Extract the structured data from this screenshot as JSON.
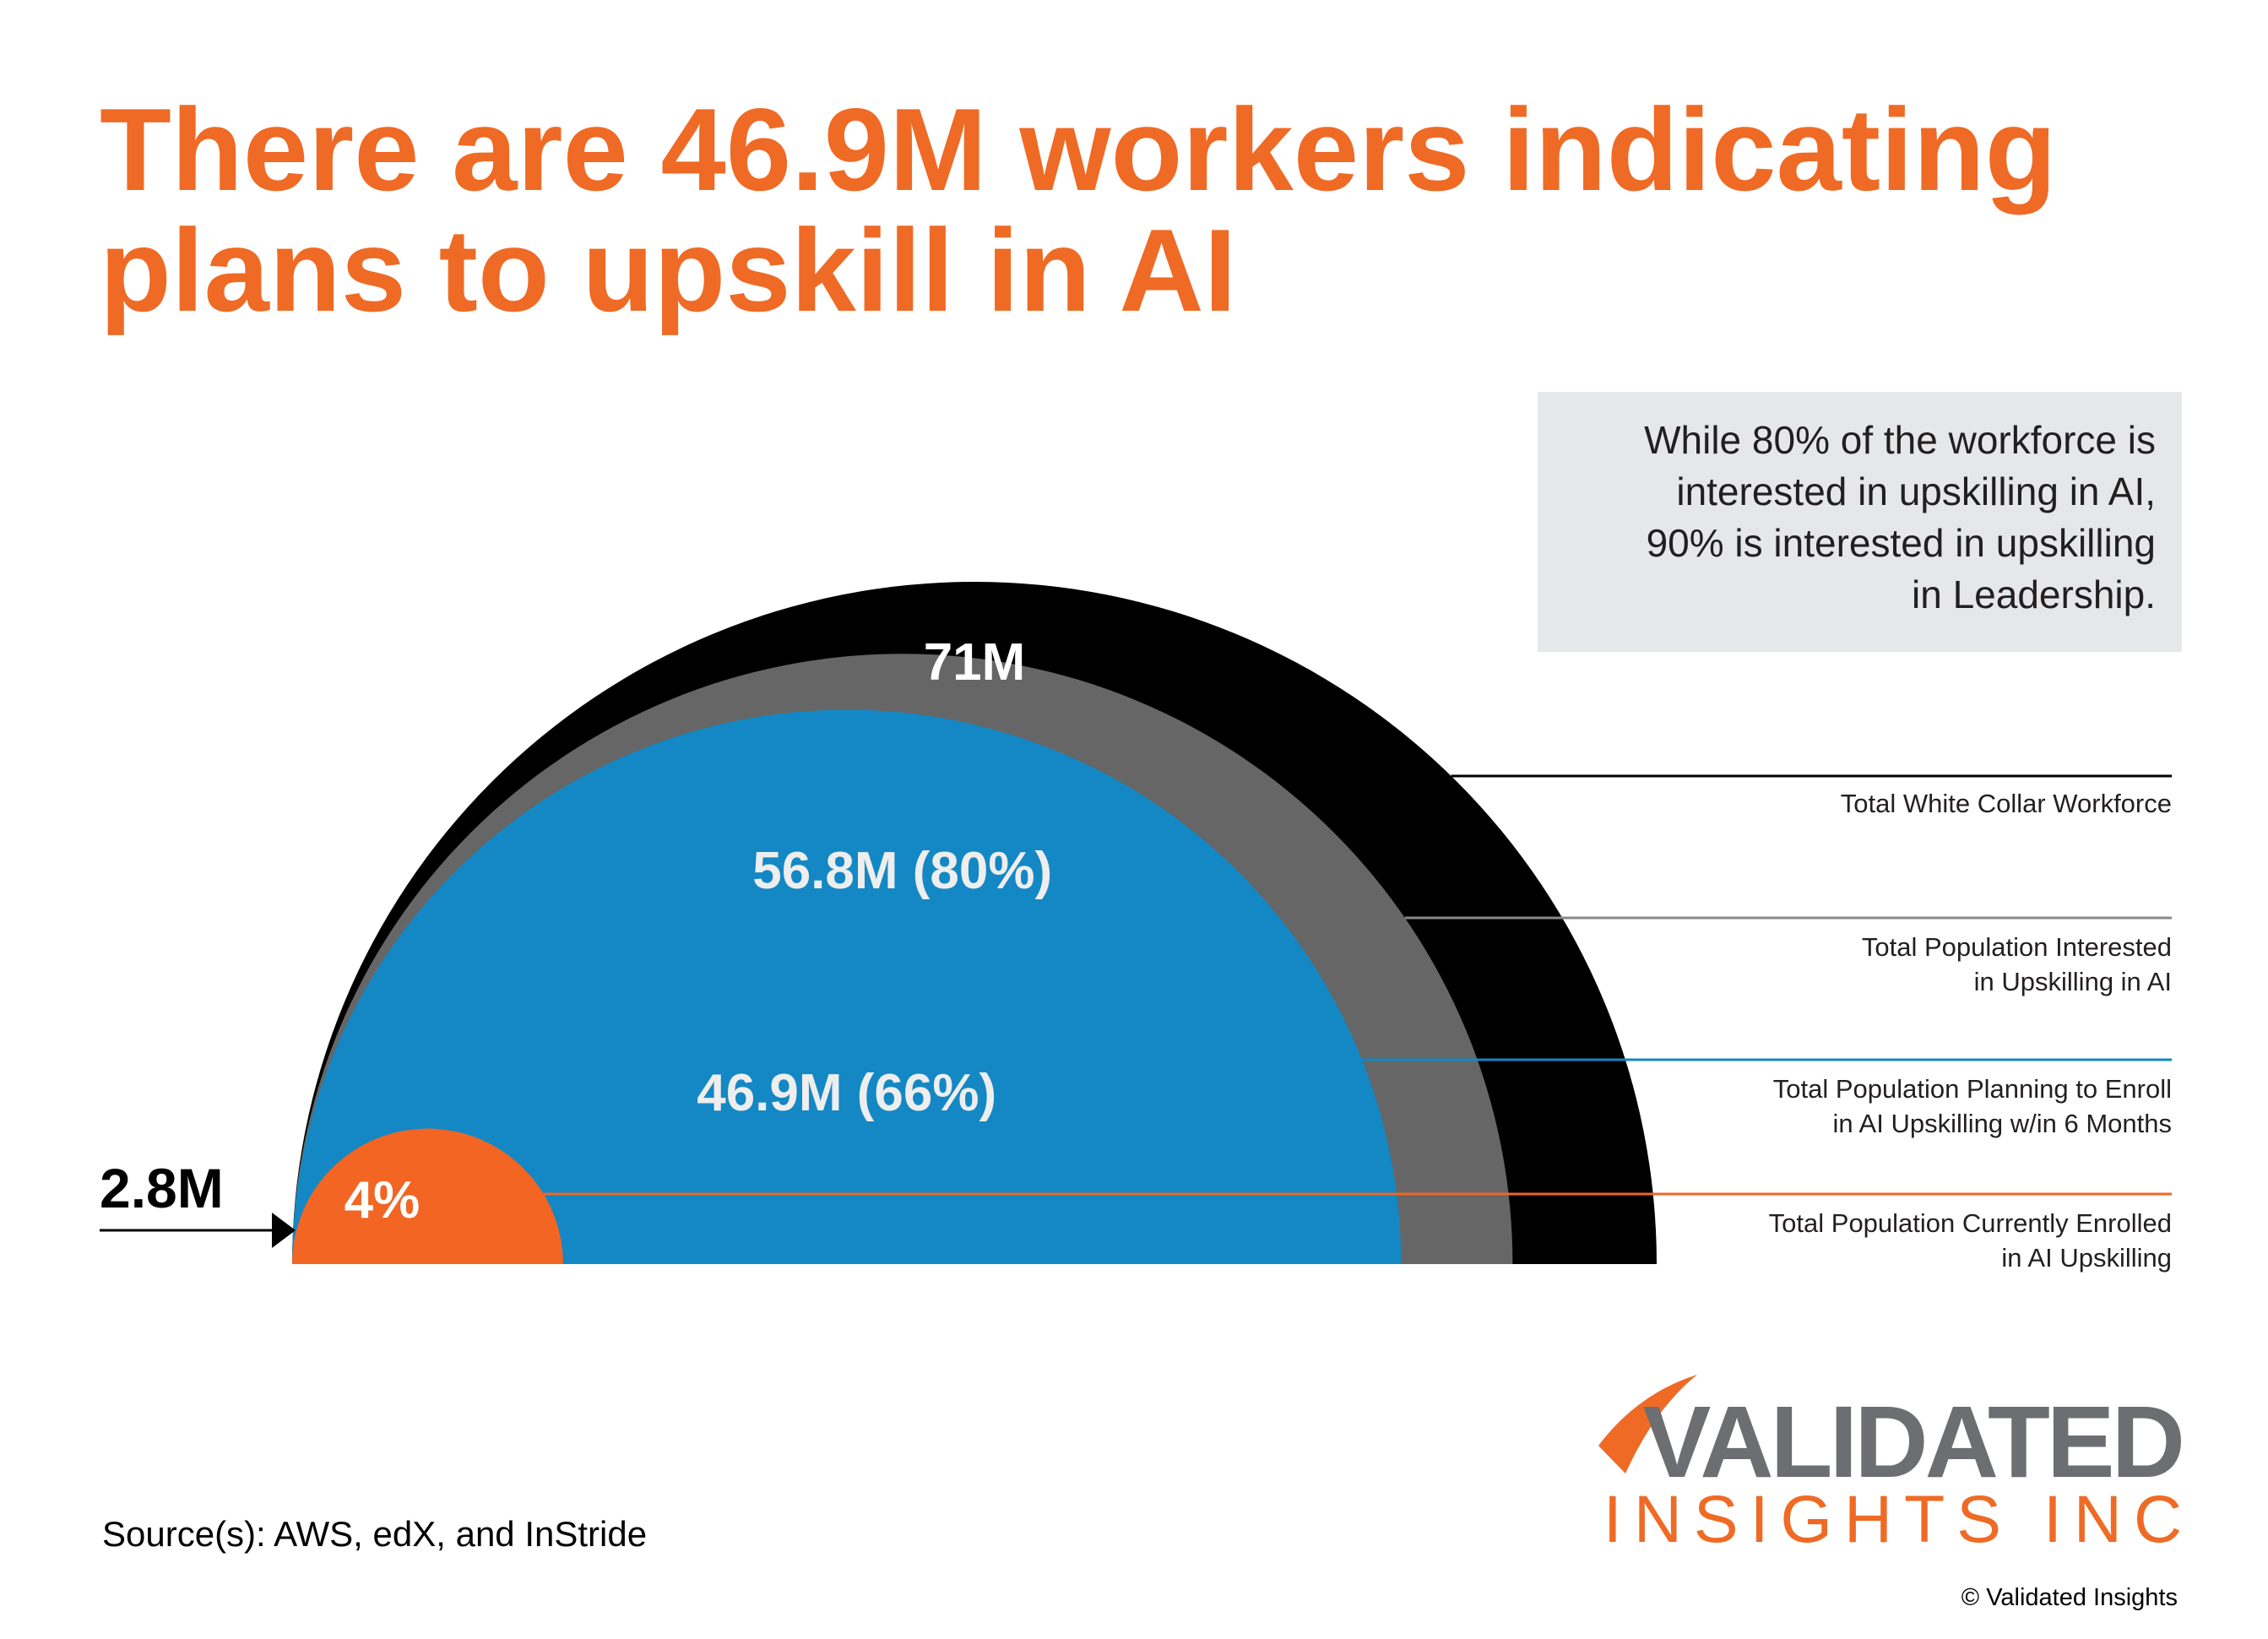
{
  "chart_data": {
    "type": "nested-semicircle",
    "title": "There are 46.9M workers indicating\nplans to upskill in AI",
    "note": "While 80% of the workforce is\ninterested in upskilling in AI,\n90% is interested in upskilling\nin Leadership.",
    "series": [
      {
        "name": "Total White Collar Workforce",
        "color": "#000000",
        "value": 71,
        "value_label": "71M"
      },
      {
        "name": "Total Population Interested\nin Upskilling in AI",
        "color": "#666666",
        "value": 56.8,
        "value_label": "56.8M (80%)"
      },
      {
        "name": "Total Population Planning to Enroll\nin AI Upskilling w/in 6 Months",
        "color": "#1388c4",
        "value": 46.9,
        "value_label": "46.9M (66%)"
      },
      {
        "name": "Total Population Currently Enrolled\nin AI Upskilling",
        "color": "#f26522",
        "value": 2.8,
        "value_label": "2.8M"
      }
    ],
    "inner_share": {
      "value": 4,
      "label": "4%"
    },
    "source": "Source(s): AWS, edX, and InStride",
    "logo": {
      "name": "VALIDATED",
      "subtitle": "INSIGHTS INC"
    },
    "copyright": "© Validated Insights"
  }
}
